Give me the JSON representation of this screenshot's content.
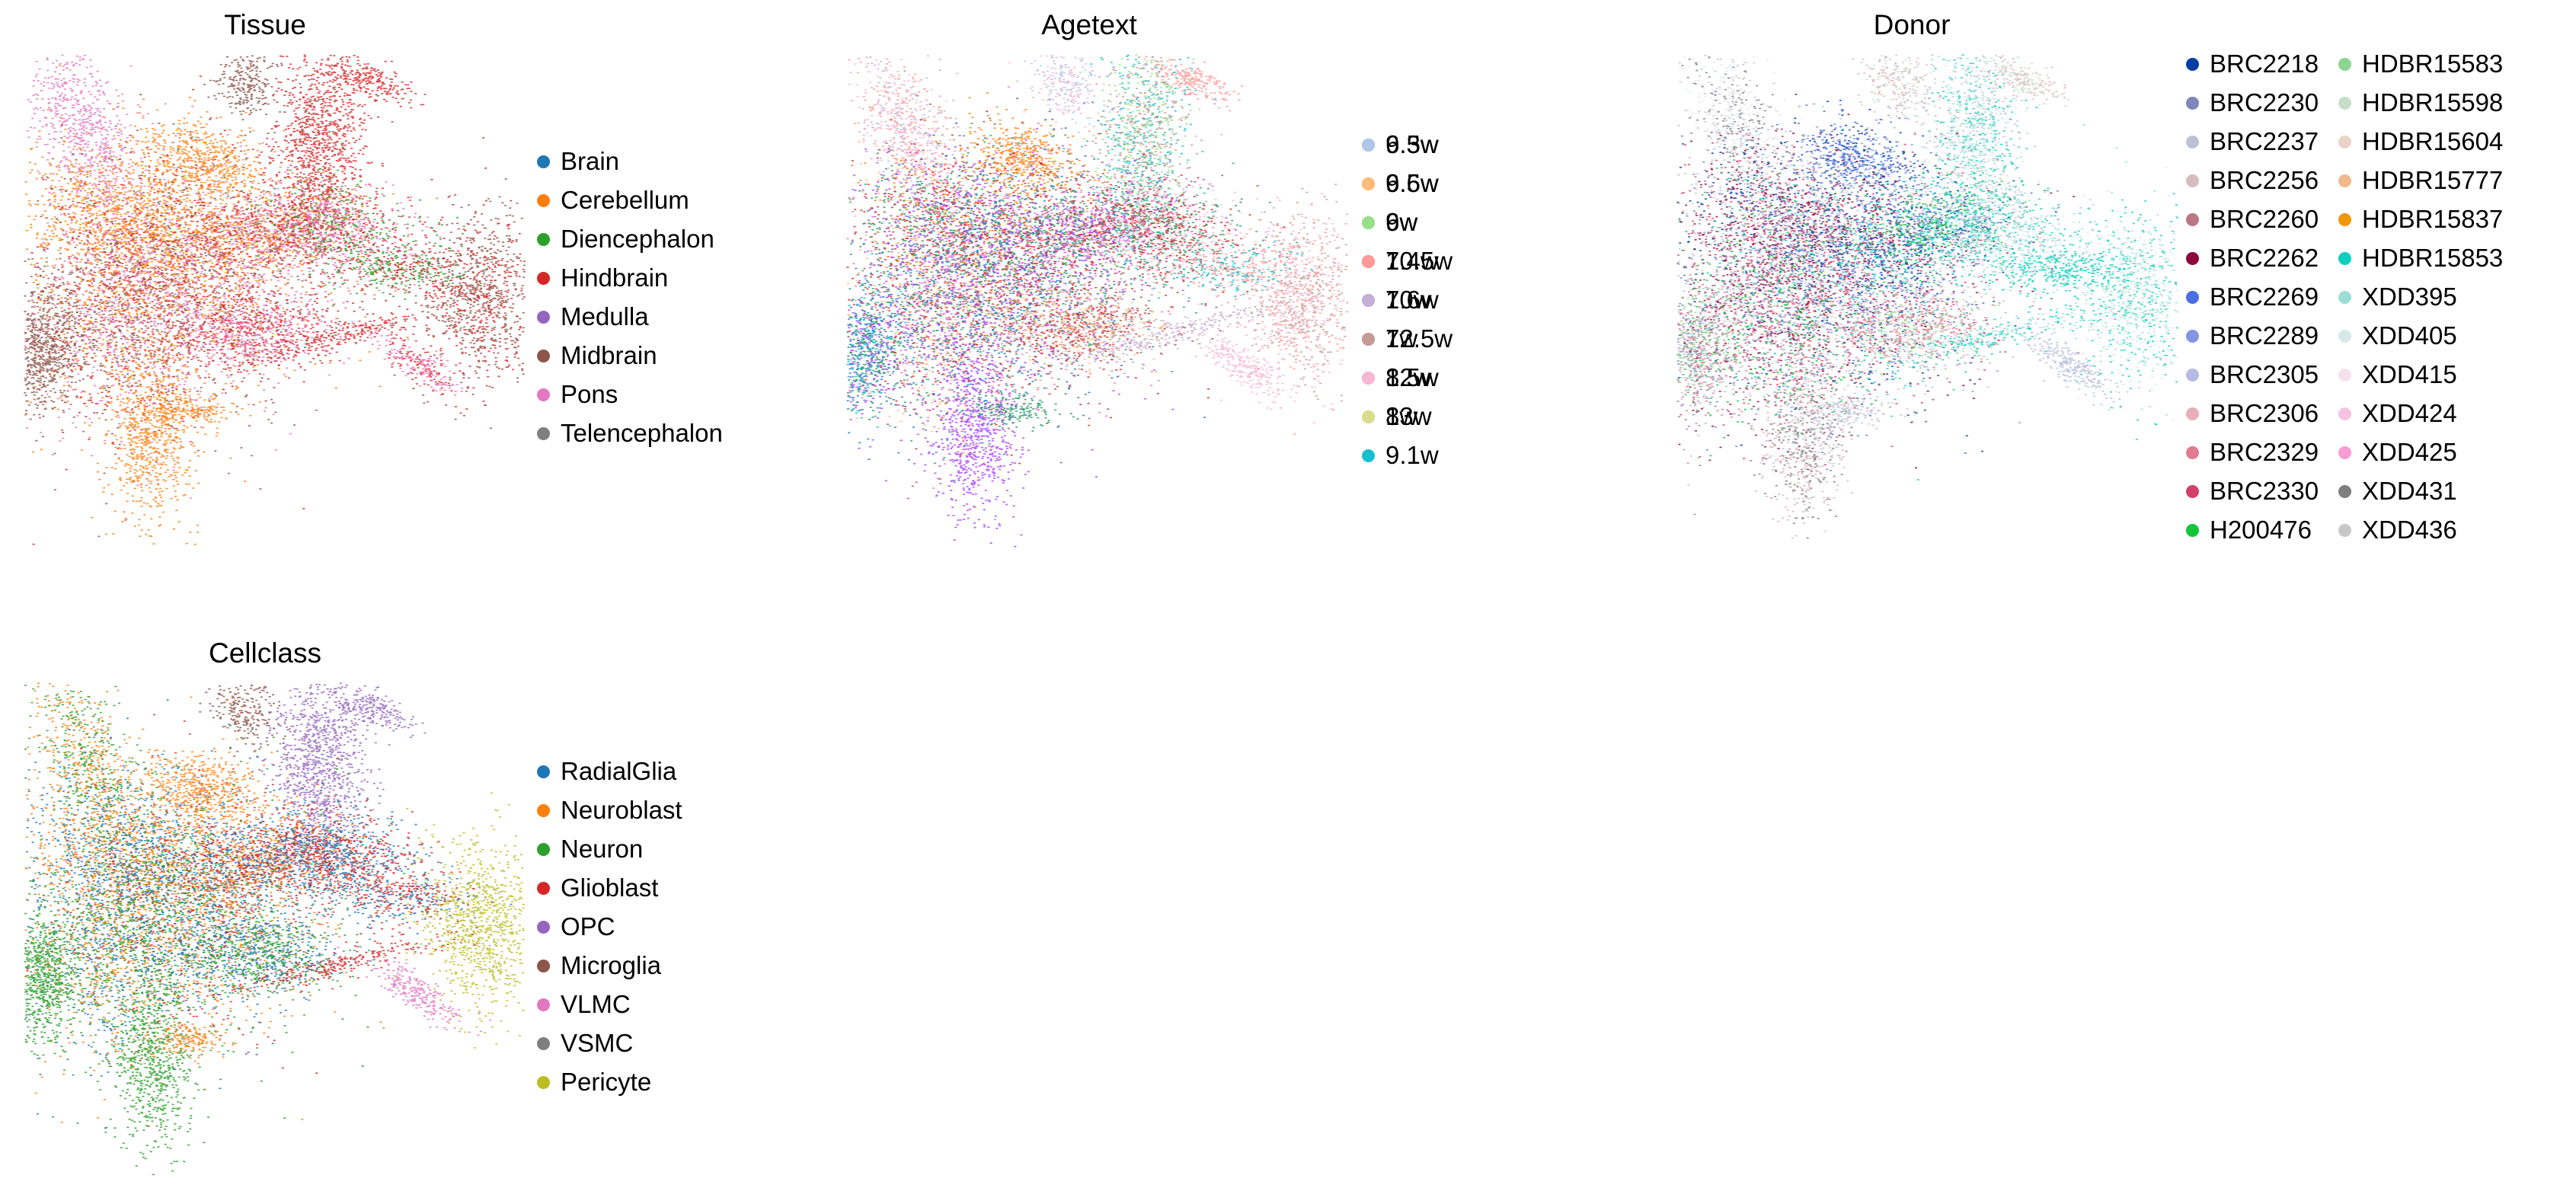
{
  "chart_data": [
    {
      "type": "scatter",
      "title": "Tissue",
      "legend": {
        "placement": "right",
        "columns": 1,
        "entries": [
          {
            "label": "Brain",
            "color": "#1f77b4"
          },
          {
            "label": "Cerebellum",
            "color": "#ff7f0e"
          },
          {
            "label": "Diencephalon",
            "color": "#2ca02c"
          },
          {
            "label": "Hindbrain",
            "color": "#d62728"
          },
          {
            "label": "Medulla",
            "color": "#9467bd"
          },
          {
            "label": "Midbrain",
            "color": "#8c564b"
          },
          {
            "label": "Pons",
            "color": "#e377c2"
          },
          {
            "label": "Telencephalon",
            "color": "#7f7f7f"
          }
        ]
      },
      "grid": false,
      "axes": false
    },
    {
      "type": "scatter",
      "title": "Agetext",
      "legend": {
        "placement": "right",
        "columns": 2,
        "entries": [
          {
            "label": "6.5w",
            "color": "#1f77b4"
          },
          {
            "label": "6.6w",
            "color": "#ff7f0e"
          },
          {
            "label": "6w",
            "color": "#279e68"
          },
          {
            "label": "7.4w",
            "color": "#d62728"
          },
          {
            "label": "7.6w",
            "color": "#aa40fc"
          },
          {
            "label": "7w",
            "color": "#8c564b"
          },
          {
            "label": "8.5w",
            "color": "#e377c2"
          },
          {
            "label": "8w",
            "color": "#b5bd61"
          },
          {
            "label": "9.1w",
            "color": "#17becf"
          },
          {
            "label": "9.3w",
            "color": "#aec7e8"
          },
          {
            "label": "9.5w",
            "color": "#ffbb78"
          },
          {
            "label": "9w",
            "color": "#98df8a"
          },
          {
            "label": "10.5w",
            "color": "#ff9896"
          },
          {
            "label": "10w",
            "color": "#c5b0d5"
          },
          {
            "label": "12.5w",
            "color": "#c49c94"
          },
          {
            "label": "12w",
            "color": "#f7b6d2"
          },
          {
            "label": "13w",
            "color": "#dbdb8d"
          }
        ]
      },
      "grid": false,
      "axes": false
    },
    {
      "type": "scatter",
      "title": "Donor",
      "legend": {
        "placement": "right",
        "columns": 2,
        "entries": [
          {
            "label": "BRC2218",
            "color": "#023fa5"
          },
          {
            "label": "BRC2230",
            "color": "#7d87b9"
          },
          {
            "label": "BRC2237",
            "color": "#bec1d4"
          },
          {
            "label": "BRC2256",
            "color": "#d6bcc0"
          },
          {
            "label": "BRC2260",
            "color": "#bb7784"
          },
          {
            "label": "BRC2262",
            "color": "#8e063b"
          },
          {
            "label": "BRC2269",
            "color": "#4a6fe3"
          },
          {
            "label": "BRC2289",
            "color": "#8595e1"
          },
          {
            "label": "BRC2305",
            "color": "#b5bbe3"
          },
          {
            "label": "BRC2306",
            "color": "#e6afb9"
          },
          {
            "label": "BRC2329",
            "color": "#e07b91"
          },
          {
            "label": "BRC2330",
            "color": "#d33f6a"
          },
          {
            "label": "H200476",
            "color": "#11c638"
          },
          {
            "label": "HDBR15583",
            "color": "#8dd593"
          },
          {
            "label": "HDBR15598",
            "color": "#c6dec7"
          },
          {
            "label": "HDBR15604",
            "color": "#ead3c6"
          },
          {
            "label": "HDBR15777",
            "color": "#f0b98d"
          },
          {
            "label": "HDBR15837",
            "color": "#ef9708"
          },
          {
            "label": "HDBR15853",
            "color": "#0fcfc0"
          },
          {
            "label": "XDD395",
            "color": "#9cded6"
          },
          {
            "label": "XDD405",
            "color": "#d5eae7"
          },
          {
            "label": "XDD415",
            "color": "#f3e1eb"
          },
          {
            "label": "XDD424",
            "color": "#f6c4e1"
          },
          {
            "label": "XDD425",
            "color": "#f79cd4"
          },
          {
            "label": "XDD431",
            "color": "#7f7f7f"
          },
          {
            "label": "XDD436",
            "color": "#c7c7c7"
          }
        ]
      },
      "grid": false,
      "axes": false
    },
    {
      "type": "scatter",
      "title": "Cellclass",
      "legend": {
        "placement": "right",
        "columns": 1,
        "entries": [
          {
            "label": "RadialGlia",
            "color": "#1f77b4"
          },
          {
            "label": "Neuroblast",
            "color": "#ff7f0e"
          },
          {
            "label": "Neuron",
            "color": "#2ca02c"
          },
          {
            "label": "Glioblast",
            "color": "#d62728"
          },
          {
            "label": "OPC",
            "color": "#9467bd"
          },
          {
            "label": "Microglia",
            "color": "#8c564b"
          },
          {
            "label": "VLMC",
            "color": "#e377c2"
          },
          {
            "label": "VSMC",
            "color": "#7f7f7f"
          },
          {
            "label": "Pericyte",
            "color": "#bcbd22"
          }
        ]
      },
      "grid": false,
      "axes": false
    }
  ]
}
